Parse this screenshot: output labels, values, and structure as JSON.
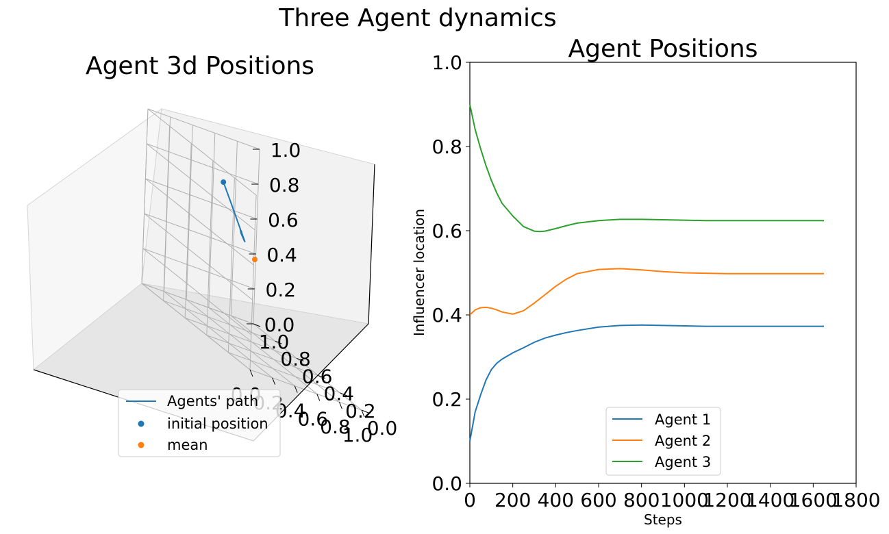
{
  "suptitle": "Three Agent dynamics",
  "chart_data": [
    {
      "type": "scatter3d",
      "title": "Agent 3d Positions",
      "x_ticks": [
        "0.0",
        "0.2",
        "0.4",
        "0.6",
        "0.8",
        "1.0"
      ],
      "y_ticks": [
        "0.0",
        "0.2",
        "0.4",
        "0.6",
        "0.8",
        "1.0"
      ],
      "z_ticks": [
        "0.0",
        "0.2",
        "0.4",
        "0.6",
        "0.8",
        "1.0"
      ],
      "xlim": [
        0,
        1
      ],
      "ylim": [
        0,
        1
      ],
      "zlim": [
        0,
        1
      ],
      "grid": true,
      "legend_position": "lower-center",
      "path": {
        "name": "Agents' path",
        "color": "#1f77b4",
        "points": [
          [
            0.1,
            0.4,
            0.9
          ],
          [
            0.18,
            0.41,
            0.8
          ],
          [
            0.25,
            0.41,
            0.7
          ],
          [
            0.3,
            0.41,
            0.63
          ],
          [
            0.33,
            0.42,
            0.6
          ],
          [
            0.35,
            0.45,
            0.6
          ],
          [
            0.37,
            0.5,
            0.62
          ],
          [
            0.375,
            0.51,
            0.63
          ],
          [
            0.375,
            0.5,
            0.63
          ],
          [
            0.375,
            0.5,
            0.625
          ]
        ]
      },
      "initial_position": {
        "name": "initial position",
        "color": "#1f77b4",
        "point": [
          0.1,
          0.4,
          0.9
        ]
      },
      "mean": {
        "name": "mean",
        "color": "#ff7f0e",
        "point": [
          0.5,
          0.5,
          0.5
        ]
      }
    },
    {
      "type": "line",
      "title": "Agent Positions",
      "xlabel": "Steps",
      "ylabel": "Influencer location",
      "xlim": [
        0,
        1800
      ],
      "ylim": [
        0.0,
        1.0
      ],
      "x_ticks": [
        0,
        200,
        400,
        600,
        800,
        1000,
        1200,
        1400,
        1600,
        1800
      ],
      "y_ticks": [
        "0.0",
        "0.2",
        "0.4",
        "0.6",
        "0.8",
        "1.0"
      ],
      "legend_position": "lower-center",
      "series": [
        {
          "name": "Agent 1",
          "color": "#1f77b4",
          "x": [
            0,
            25,
            50,
            75,
            100,
            125,
            150,
            200,
            250,
            300,
            350,
            400,
            450,
            500,
            600,
            700,
            800,
            900,
            1000,
            1100,
            1200,
            1300,
            1400,
            1500,
            1650
          ],
          "y": [
            0.1,
            0.17,
            0.21,
            0.245,
            0.27,
            0.285,
            0.295,
            0.31,
            0.322,
            0.335,
            0.345,
            0.352,
            0.358,
            0.363,
            0.371,
            0.375,
            0.376,
            0.375,
            0.374,
            0.373,
            0.373,
            0.373,
            0.373,
            0.373,
            0.373
          ]
        },
        {
          "name": "Agent 2",
          "color": "#ff7f0e",
          "x": [
            0,
            25,
            50,
            75,
            100,
            125,
            150,
            200,
            250,
            300,
            350,
            400,
            450,
            500,
            600,
            700,
            800,
            900,
            1000,
            1100,
            1200,
            1300,
            1400,
            1500,
            1650
          ],
          "y": [
            0.4,
            0.412,
            0.417,
            0.418,
            0.416,
            0.412,
            0.407,
            0.402,
            0.41,
            0.428,
            0.448,
            0.468,
            0.485,
            0.498,
            0.508,
            0.51,
            0.507,
            0.503,
            0.5,
            0.499,
            0.498,
            0.498,
            0.498,
            0.498,
            0.498
          ]
        },
        {
          "name": "Agent 3",
          "color": "#2ca02c",
          "x": [
            0,
            25,
            50,
            75,
            100,
            125,
            150,
            200,
            250,
            300,
            325,
            350,
            400,
            450,
            500,
            600,
            700,
            800,
            900,
            1000,
            1100,
            1200,
            1300,
            1400,
            1500,
            1650
          ],
          "y": [
            0.9,
            0.84,
            0.795,
            0.755,
            0.72,
            0.69,
            0.665,
            0.635,
            0.61,
            0.599,
            0.598,
            0.599,
            0.605,
            0.612,
            0.618,
            0.624,
            0.627,
            0.627,
            0.626,
            0.625,
            0.624,
            0.624,
            0.624,
            0.624,
            0.624,
            0.624
          ]
        }
      ]
    }
  ]
}
